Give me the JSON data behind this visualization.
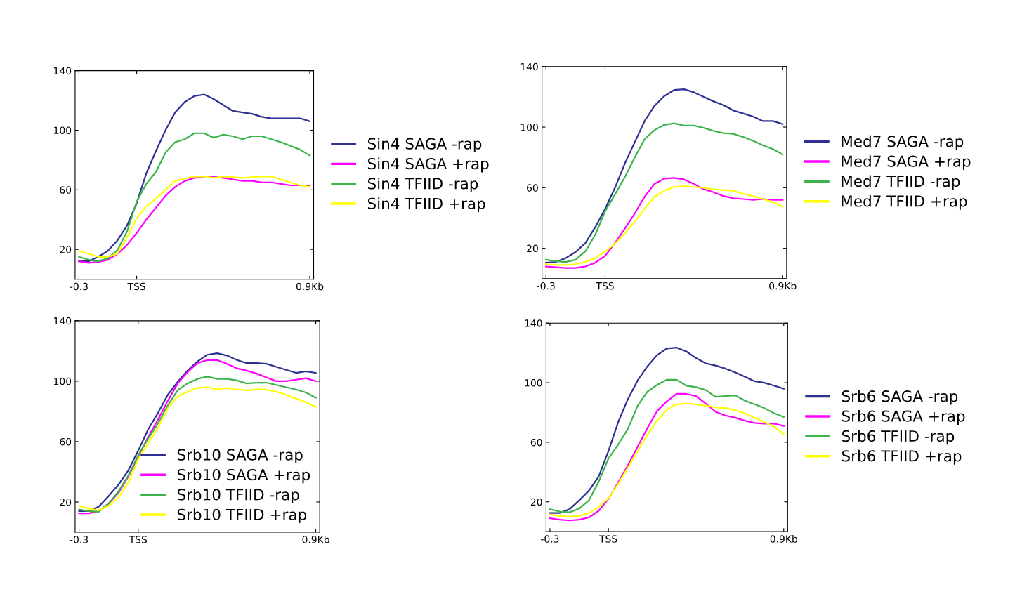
{
  "chart_data": [
    {
      "type": "line",
      "x": [
        -0.3,
        -0.25,
        -0.2,
        -0.15,
        -0.1,
        -0.05,
        0,
        0.05,
        0.1,
        0.15,
        0.2,
        0.25,
        0.3,
        0.35,
        0.4,
        0.45,
        0.5,
        0.55,
        0.6,
        0.65,
        0.7,
        0.75,
        0.8,
        0.85,
        0.9
      ],
      "xlim": [
        -0.32,
        0.92
      ],
      "xticks": [
        {
          "value": -0.3,
          "label": "-0.3"
        },
        {
          "value": 0,
          "label": "TSS"
        },
        {
          "value": 0.9,
          "label": "0.9Kb"
        }
      ],
      "ylim": [
        0,
        140
      ],
      "yticks": [
        20,
        60,
        100,
        140
      ],
      "grid": false,
      "legend": "right",
      "line_style": "solid",
      "marker": "none",
      "series": [
        {
          "name": "Sin4 SAGA -rap",
          "color": "#2e3192",
          "values": [
            12,
            12,
            15,
            19,
            26,
            36,
            51,
            71,
            86,
            100,
            112,
            119,
            123,
            124,
            121,
            117,
            113,
            112,
            111,
            109,
            108,
            108,
            108,
            108,
            106
          ]
        },
        {
          "name": "Sin4 SAGA +rap",
          "color": "#ff00ff",
          "values": [
            12,
            11,
            11.5,
            13,
            17,
            23,
            31,
            40,
            48,
            56,
            62,
            66,
            68,
            69,
            69,
            68,
            67,
            66,
            66,
            65,
            65,
            64,
            63,
            63,
            63
          ]
        },
        {
          "name": "Sin4 TFIID -rap",
          "color": "#3cb44b",
          "values": [
            15,
            13,
            12,
            14,
            19.5,
            32,
            52,
            64,
            72,
            85,
            92,
            94,
            98,
            98,
            95,
            97,
            96,
            94,
            96,
            96,
            94,
            92,
            89.5,
            87,
            83
          ]
        },
        {
          "name": "Sin4 TFIID +rap",
          "color": "#ffff00",
          "values": [
            19,
            17,
            15,
            15,
            17,
            28,
            41,
            49,
            54,
            60,
            66,
            67.5,
            69,
            69,
            68,
            69,
            68.5,
            68,
            68.5,
            69,
            69,
            67,
            65,
            63,
            62
          ]
        }
      ]
    },
    {
      "type": "line",
      "x": [
        -0.3,
        -0.25,
        -0.2,
        -0.15,
        -0.1,
        -0.05,
        0,
        0.05,
        0.1,
        0.15,
        0.2,
        0.25,
        0.3,
        0.35,
        0.4,
        0.45,
        0.5,
        0.55,
        0.6,
        0.65,
        0.7,
        0.75,
        0.8,
        0.85,
        0.9
      ],
      "xlim": [
        -0.32,
        0.92
      ],
      "xticks": [
        {
          "value": -0.3,
          "label": "-0.3"
        },
        {
          "value": 0,
          "label": "TSS"
        },
        {
          "value": 0.9,
          "label": "0.9Kb"
        }
      ],
      "ylim": [
        0,
        140
      ],
      "yticks": [
        20,
        60,
        100,
        140
      ],
      "grid": false,
      "legend": "right",
      "line_style": "solid",
      "marker": "none",
      "series": [
        {
          "name": "Med7 SAGA -rap",
          "color": "#2e3192",
          "values": [
            10.5,
            11,
            13.5,
            17.5,
            23.5,
            34,
            46,
            60,
            76,
            90,
            104,
            114,
            120.5,
            124.5,
            125,
            123,
            120,
            117,
            114.5,
            111,
            109,
            107,
            104,
            104,
            102
          ]
        },
        {
          "name": "Med7 SAGA +rap",
          "color": "#ff00ff",
          "values": [
            8,
            7.5,
            7,
            7,
            8,
            10.5,
            15,
            23.5,
            33,
            43,
            54,
            62.5,
            66,
            66.5,
            65.5,
            62.5,
            59,
            57,
            54.5,
            53,
            52.5,
            52,
            52.5,
            52,
            52
          ]
        },
        {
          "name": "Med7 TFIID -rap",
          "color": "#3cb44b",
          "values": [
            12.5,
            11.5,
            11,
            12.5,
            18,
            29,
            44.5,
            55.5,
            67,
            80,
            92,
            98,
            101.5,
            102.5,
            101,
            101,
            99.5,
            97.5,
            96,
            95.5,
            93.5,
            91,
            88,
            85.5,
            82
          ]
        },
        {
          "name": "Med7 TFIID +rap",
          "color": "#ffff00",
          "values": [
            9.5,
            9,
            9,
            9.5,
            11,
            13.5,
            18,
            23,
            30,
            37.5,
            46,
            54,
            58,
            60.5,
            61,
            60.5,
            60,
            59,
            58.5,
            58,
            56,
            54.5,
            52.5,
            50.5,
            47.5
          ]
        }
      ]
    },
    {
      "type": "line",
      "x": [
        -0.3,
        -0.25,
        -0.2,
        -0.15,
        -0.1,
        -0.05,
        0,
        0.05,
        0.1,
        0.15,
        0.2,
        0.25,
        0.3,
        0.35,
        0.4,
        0.45,
        0.5,
        0.55,
        0.6,
        0.65,
        0.7,
        0.75,
        0.8,
        0.85,
        0.9
      ],
      "xlim": [
        -0.32,
        0.92
      ],
      "xticks": [
        {
          "value": -0.3,
          "label": "-0.3"
        },
        {
          "value": 0,
          "label": "TSS"
        },
        {
          "value": 0.9,
          "label": "0.9Kb"
        }
      ],
      "ylim": [
        0,
        140
      ],
      "yticks": [
        20,
        60,
        100,
        140
      ],
      "grid": false,
      "legend": "bottom right",
      "line_style": "solid",
      "marker": "none",
      "series": [
        {
          "name": "Srb10 SAGA -rap",
          "color": "#2e3192",
          "values": [
            14,
            14,
            17,
            24,
            31.5,
            41,
            54,
            68,
            79,
            91,
            99.5,
            107,
            113,
            117.5,
            118.5,
            117,
            114,
            112,
            112,
            111.5,
            109.5,
            107.5,
            105.5,
            106.5,
            105.5
          ]
        },
        {
          "name": "Srb10 SAGA +rap",
          "color": "#ff00ff",
          "values": [
            12.5,
            12.5,
            14,
            19,
            26,
            37,
            50,
            63,
            74.5,
            87,
            98.5,
            106,
            112,
            114,
            114,
            111.5,
            108.5,
            107,
            105,
            102.5,
            100,
            100,
            101,
            102,
            100
          ]
        },
        {
          "name": "Srb10 TFIID -rap",
          "color": "#3cb44b",
          "values": [
            15,
            14,
            13.5,
            19,
            27,
            37.5,
            51,
            62,
            72,
            84,
            94,
            98.5,
            101.5,
            103,
            101.5,
            101.5,
            100.5,
            98.5,
            99,
            99,
            97.5,
            96,
            94.5,
            92.5,
            89
          ]
        },
        {
          "name": "Srb10 TFIID +rap",
          "color": "#ffff00",
          "values": [
            17.5,
            15.5,
            14.5,
            17.5,
            23,
            33,
            48.5,
            59,
            69,
            82,
            90,
            93,
            95.5,
            96,
            94.5,
            95.5,
            94.5,
            94,
            94.5,
            94.5,
            93,
            91,
            88.5,
            86,
            83
          ]
        }
      ]
    },
    {
      "type": "line",
      "x": [
        -0.3,
        -0.25,
        -0.2,
        -0.15,
        -0.1,
        -0.05,
        0,
        0.05,
        0.1,
        0.15,
        0.2,
        0.25,
        0.3,
        0.35,
        0.4,
        0.45,
        0.5,
        0.55,
        0.6,
        0.65,
        0.7,
        0.75,
        0.8,
        0.85,
        0.9
      ],
      "xlim": [
        -0.32,
        0.92
      ],
      "xticks": [
        {
          "value": -0.3,
          "label": "-0.3"
        },
        {
          "value": 0,
          "label": "TSS"
        },
        {
          "value": 0.9,
          "label": "0.9Kb"
        }
      ],
      "ylim": [
        0,
        140
      ],
      "yticks": [
        20,
        60,
        100,
        140
      ],
      "grid": false,
      "legend": "right",
      "line_style": "solid",
      "marker": "none",
      "series": [
        {
          "name": "Srb6 SAGA -rap",
          "color": "#2e3192",
          "values": [
            12.5,
            12.5,
            15,
            21,
            27.5,
            37,
            54,
            73.5,
            89,
            101.5,
            111,
            118.5,
            123,
            123.5,
            121,
            116.5,
            113,
            111.5,
            109.5,
            107,
            104,
            101,
            100,
            98,
            96
          ]
        },
        {
          "name": "Srb6 SAGA +rap",
          "color": "#ff00ff",
          "values": [
            9,
            8,
            7.5,
            8,
            9.5,
            14,
            22,
            33,
            44.5,
            57,
            69.5,
            81,
            87.5,
            92.5,
            92.5,
            91,
            86,
            80.5,
            78,
            76.5,
            74.5,
            73,
            72.5,
            72.5,
            71
          ]
        },
        {
          "name": "Srb6 TFIID -rap",
          "color": "#3cb44b",
          "values": [
            15,
            13.5,
            13,
            15.5,
            21,
            33.5,
            49,
            58.5,
            69,
            84.5,
            94,
            98.5,
            102,
            102,
            98,
            97,
            95,
            90.5,
            91,
            91.5,
            88,
            85.5,
            83,
            79.5,
            77
          ]
        },
        {
          "name": "Srb6 TFIID +rap",
          "color": "#ffff00",
          "values": [
            11.5,
            10.5,
            10,
            10.5,
            12.5,
            16.5,
            22.5,
            32,
            43,
            54,
            65,
            74.5,
            82,
            85.5,
            86,
            85.5,
            84.5,
            83.5,
            83,
            81.5,
            79.5,
            76.5,
            73.5,
            70.5,
            65.5
          ]
        }
      ]
    }
  ]
}
